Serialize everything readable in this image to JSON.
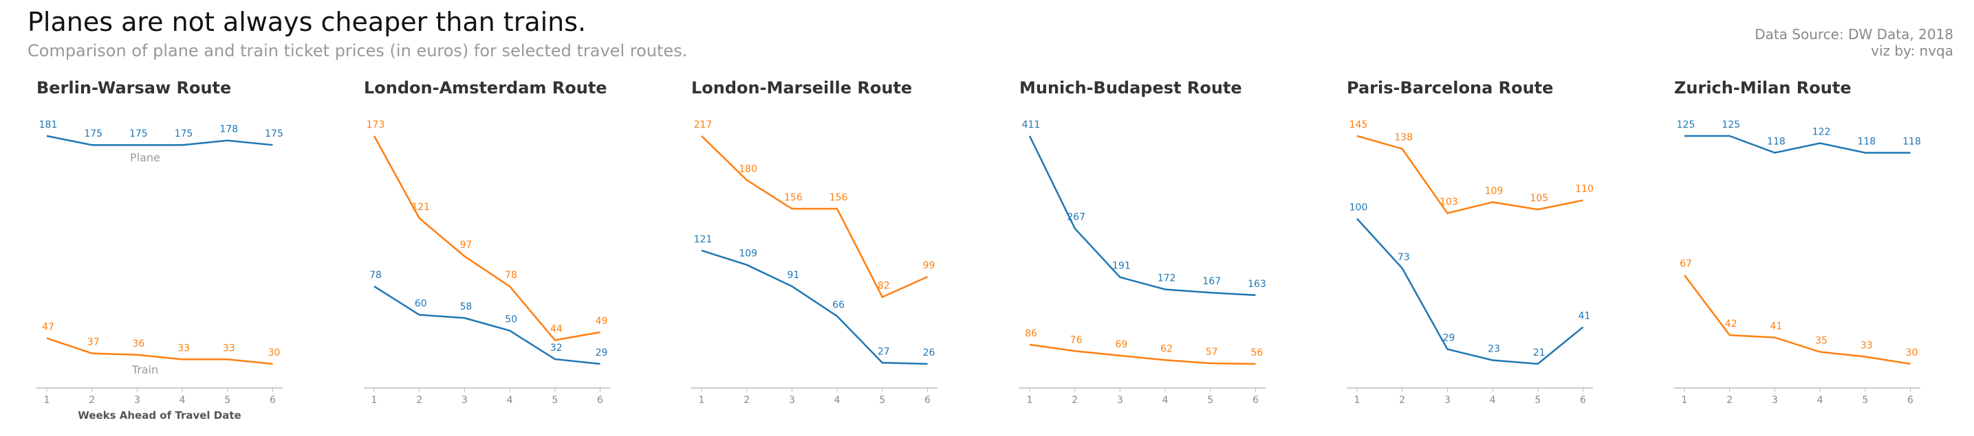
{
  "title": "Planes are not always cheaper than trains.",
  "subtitle": "Comparison of plane and train ticket prices (in euros) for selected travel routes.",
  "source_line1": "Data Source: DW Data, 2018",
  "source_line2": "viz by: nvqa",
  "colors": {
    "plane": "#1f77b4",
    "train": "#ff7f0e"
  },
  "chart_data": [
    {
      "type": "line",
      "title": "Berlin-Warsaw Route",
      "xlabel": "Weeks Ahead of Travel Date",
      "x": [
        1,
        2,
        3,
        4,
        5,
        6
      ],
      "series": [
        {
          "name": "Plane",
          "values": [
            181,
            175,
            175,
            175,
            178,
            175
          ]
        },
        {
          "name": "Train",
          "values": [
            47,
            37,
            36,
            33,
            33,
            30
          ]
        }
      ]
    },
    {
      "type": "line",
      "title": "London-Amsterdam Route",
      "x": [
        1,
        2,
        3,
        4,
        5,
        6
      ],
      "series": [
        {
          "values": [
            78,
            60,
            58,
            50,
            32,
            29
          ]
        },
        {
          "values": [
            173,
            121,
            97,
            78,
            44,
            49
          ]
        }
      ]
    },
    {
      "type": "line",
      "title": "London-Marseille Route",
      "x": [
        1,
        2,
        3,
        4,
        5,
        6
      ],
      "series": [
        {
          "values": [
            121,
            109,
            91,
            66,
            27,
            26
          ]
        },
        {
          "values": [
            217,
            180,
            156,
            156,
            82,
            99
          ]
        }
      ]
    },
    {
      "type": "line",
      "title": "Munich-Budapest Route",
      "x": [
        1,
        2,
        3,
        4,
        5,
        6
      ],
      "series": [
        {
          "values": [
            411,
            267,
            191,
            172,
            167,
            163
          ]
        },
        {
          "values": [
            86,
            76,
            69,
            62,
            57,
            56
          ]
        }
      ]
    },
    {
      "type": "line",
      "title": "Paris-Barcelona Route",
      "x": [
        1,
        2,
        3,
        4,
        5,
        6
      ],
      "series": [
        {
          "values": [
            100,
            73,
            29,
            23,
            21,
            41
          ]
        },
        {
          "values": [
            145,
            138,
            103,
            109,
            105,
            110
          ]
        }
      ]
    },
    {
      "type": "line",
      "title": "Zurich-Milan Route",
      "x": [
        1,
        2,
        3,
        4,
        5,
        6
      ],
      "series": [
        {
          "values": [
            125,
            125,
            118,
            122,
            118,
            118
          ]
        },
        {
          "values": [
            67,
            42,
            41,
            35,
            33,
            30
          ]
        }
      ]
    }
  ]
}
